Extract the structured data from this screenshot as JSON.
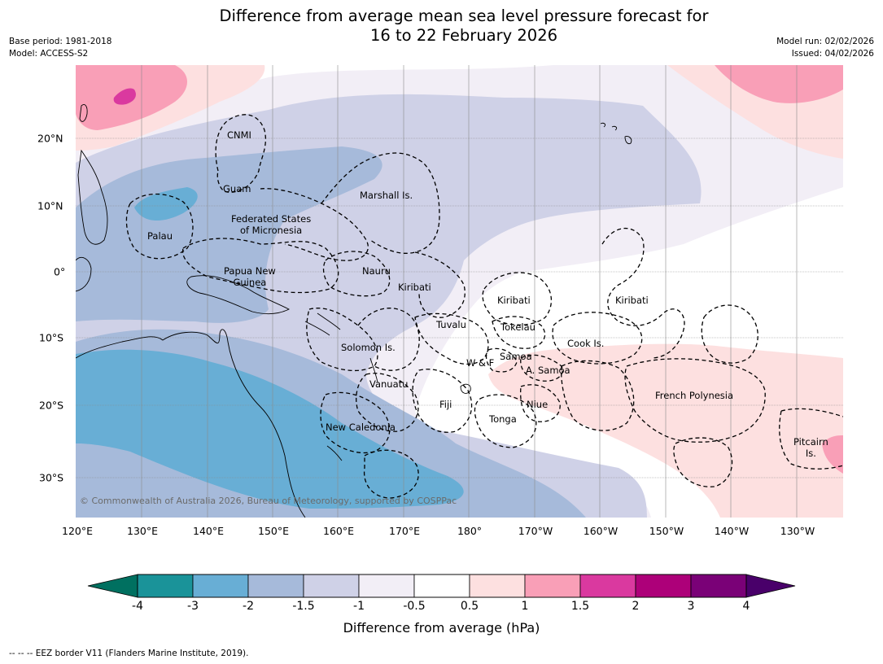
{
  "title": {
    "line1": "Difference from average mean sea level pressure forecast for",
    "line2": "16 to 22 February 2026"
  },
  "meta_left": {
    "base_period": "Base period: 1981-2018",
    "model": "Model: ACCESS-S2"
  },
  "meta_right": {
    "model_run": "Model run: 02/02/2026",
    "issued": "Issued: 04/02/2026"
  },
  "axes": {
    "longitude_labels": [
      "120°E",
      "130°E",
      "140°E",
      "150°E",
      "160°E",
      "170°E",
      "180°",
      "170°W",
      "160°W",
      "150°W",
      "140°W",
      "130°W"
    ],
    "latitude_labels": [
      "20°N",
      "10°N",
      "0°",
      "10°S",
      "20°S",
      "30°S"
    ]
  },
  "place_labels": {
    "cnmi": "CNMI",
    "guam": "Guam",
    "marshall": "Marshall Is.",
    "fsm_line1": "Federated States",
    "fsm_line2": "of Micronesia",
    "palau": "Palau",
    "png_line1": "Papua New",
    "png_line2": "Guinea",
    "nauru": "Nauru",
    "kiribati_w": "Kiribati",
    "kiribati_c": "Kiribati",
    "kiribati_e": "Kiribati",
    "tuvalu": "Tuvalu",
    "tokelau": "Tokelau",
    "solomon": "Solomon Is.",
    "wf": "W & F",
    "samoa": "Samoa",
    "asamoa": "A. Samoa",
    "cook": "Cook Is.",
    "vanuatu": "Vanuatu",
    "fiji": "Fiji",
    "niue": "Niue",
    "tonga": "Tonga",
    "new_caledonia": "New Caledonia",
    "french_polynesia": "French Polynesia",
    "pitcairn_line1": "Pitcairn",
    "pitcairn_line2": "Is."
  },
  "copyright": "© Commonwealth of Australia 2026, Bureau of Meteorology, supported by COSPPac",
  "colorbar": {
    "title": "Difference from average (hPa)",
    "ticks": [
      "-4",
      "-3",
      "-2",
      "-1.5",
      "-1",
      "-0.5",
      "0.5",
      "1",
      "1.5",
      "2",
      "3",
      "4"
    ],
    "colors": [
      "#1a9399",
      "#68aed5",
      "#a6bada",
      "#cfd1e7",
      "#f2eef6",
      "#ffffff",
      "#fde0e0",
      "#f99fb7",
      "#da399f",
      "#ad0079",
      "#7a0177"
    ],
    "under_color": "#007060",
    "over_color": "#49006a"
  },
  "footnote": "--  --  -- EEZ border V11 (Flanders Marine Institute, 2019)."
}
